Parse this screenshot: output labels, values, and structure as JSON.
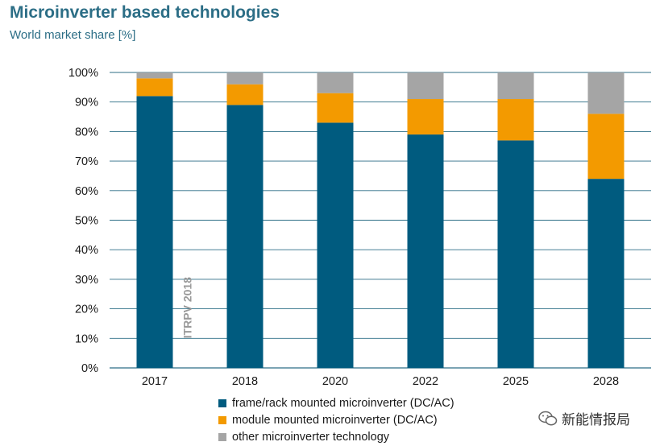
{
  "header": {
    "title": "Microinverter based technologies",
    "subtitle": "World market share [%]"
  },
  "chart_data": {
    "type": "bar",
    "stacked": true,
    "title": "Microinverter based technologies",
    "ylabel": "World market share [%]",
    "xlabel": "",
    "categories": [
      "2017",
      "2018",
      "2020",
      "2022",
      "2025",
      "2028"
    ],
    "series": [
      {
        "name": "frame/rack mounted microinverter (DC/AC)",
        "color": "#005b7f",
        "values": [
          92,
          89,
          83,
          79,
          77,
          64
        ]
      },
      {
        "name": "module mounted microinverter (DC/AC)",
        "color": "#f39a00",
        "values": [
          6,
          7,
          10,
          12,
          14,
          22
        ]
      },
      {
        "name": "other microinverter technology",
        "color": "#a5a5a5",
        "values": [
          2,
          4,
          7,
          9,
          9,
          14
        ]
      }
    ],
    "ylim": [
      0,
      100
    ],
    "yticks": [
      "0%",
      "10%",
      "20%",
      "30%",
      "40%",
      "50%",
      "60%",
      "70%",
      "80%",
      "90%",
      "100%"
    ],
    "grid": true,
    "legend": "bottom",
    "annotation": "ITRPV 2018"
  },
  "watermark": {
    "text": "新能情报局"
  }
}
